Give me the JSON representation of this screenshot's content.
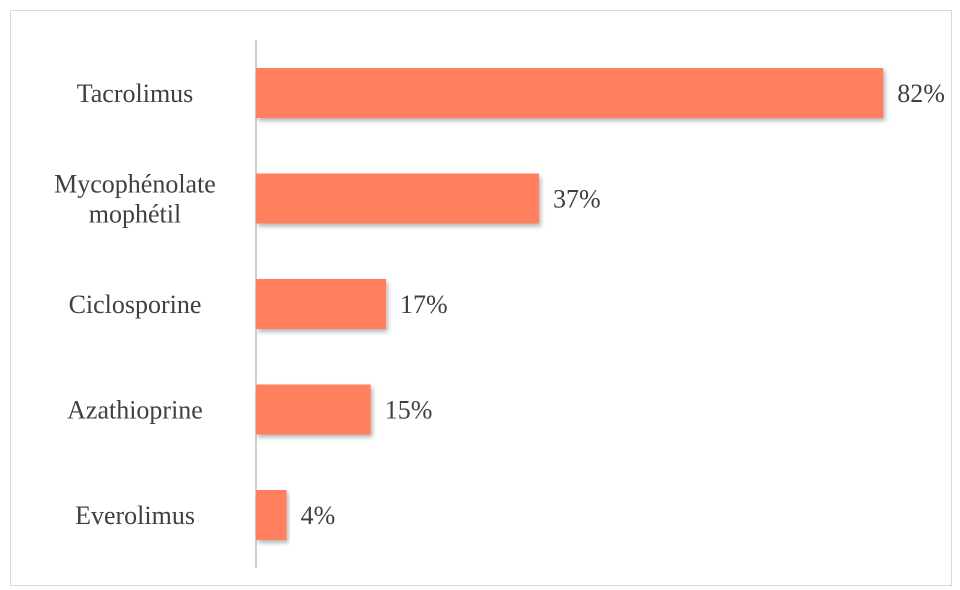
{
  "chart_data": {
    "type": "bar",
    "orientation": "horizontal",
    "categories": [
      [
        "Tacrolimus"
      ],
      [
        "Mycophénolate",
        "mophétil"
      ],
      [
        "Ciclosporine"
      ],
      [
        "Azathioprine"
      ],
      [
        "Everolimus"
      ]
    ],
    "values": [
      82,
      37,
      17,
      15,
      4
    ],
    "value_labels": [
      "82%",
      "37%",
      "17%",
      "15%",
      "4%"
    ],
    "unit": "%",
    "title": "",
    "xlabel": "",
    "ylabel": "",
    "xlim": [
      0,
      100
    ],
    "grid": false,
    "legend": "none",
    "bar_color": "#ff7f5f",
    "axis_color": "#bfbfbf",
    "text_color": "#404040"
  }
}
